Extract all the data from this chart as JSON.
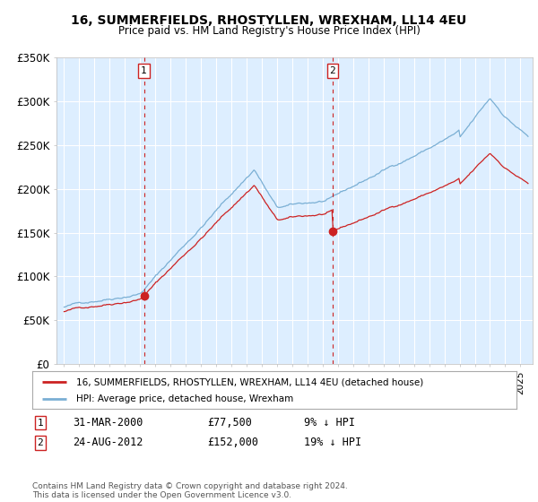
{
  "title": "16, SUMMERFIELDS, RHOSTYLLEN, WREXHAM, LL14 4EU",
  "subtitle": "Price paid vs. HM Land Registry's House Price Index (HPI)",
  "ylim": [
    0,
    350000
  ],
  "yticks": [
    0,
    50000,
    100000,
    150000,
    200000,
    250000,
    300000,
    350000
  ],
  "ytick_labels": [
    "£0",
    "£50K",
    "£100K",
    "£150K",
    "£200K",
    "£250K",
    "£300K",
    "£350K"
  ],
  "hpi_color": "#7aafd4",
  "price_color": "#cc2222",
  "background_color": "#ffffff",
  "plot_bg_color": "#ddeeff",
  "grid_color": "#ffffff",
  "sale1_date_x": 2000.25,
  "sale1_price": 77500,
  "sale1_label": "1",
  "sale2_date_x": 2012.65,
  "sale2_price": 152000,
  "sale2_label": "2",
  "legend1": "16, SUMMERFIELDS, RHOSTYLLEN, WREXHAM, LL14 4EU (detached house)",
  "legend2": "HPI: Average price, detached house, Wrexham",
  "table_row1": [
    "1",
    "31-MAR-2000",
    "£77,500",
    "9% ↓ HPI"
  ],
  "table_row2": [
    "2",
    "24-AUG-2012",
    "£152,000",
    "19% ↓ HPI"
  ],
  "footnote": "Contains HM Land Registry data © Crown copyright and database right 2024.\nThis data is licensed under the Open Government Licence v3.0.",
  "xmin": 1994.5,
  "xmax": 2025.8
}
